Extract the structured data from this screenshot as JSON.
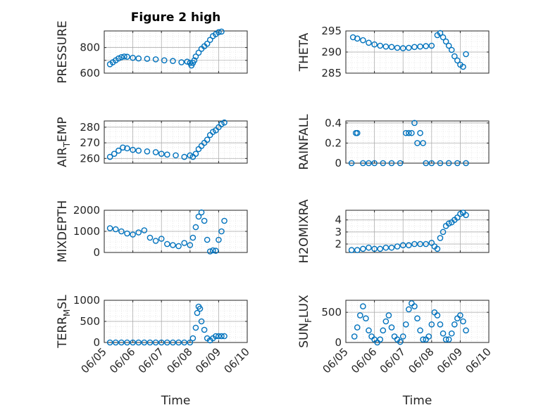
{
  "figure": {
    "title": "Figure 2 high"
  },
  "colors": {
    "marker": "#0072BD",
    "axis": "#262626",
    "grid": "#a6a6a6"
  },
  "chart_data": [
    {
      "type": "scatter",
      "title": "Figure 2 high",
      "xlabel": "",
      "ylabel": "PRESSURE",
      "ylabel_sub": "",
      "ylabel_tail": "",
      "xlim": [
        0,
        5
      ],
      "ylim": [
        600,
        930
      ],
      "yticks": [
        600,
        700,
        800
      ],
      "ytick_labels": [
        "600",
        "",
        "800"
      ],
      "xticks": [
        0,
        1,
        2,
        3,
        4,
        5
      ],
      "xtick_labels": [],
      "grid": true,
      "x": [
        0.2,
        0.3,
        0.4,
        0.5,
        0.6,
        0.7,
        0.8,
        1.0,
        1.2,
        1.5,
        1.8,
        2.1,
        2.4,
        2.7,
        2.9,
        3.0,
        3.05,
        3.1,
        3.15,
        3.2,
        3.3,
        3.4,
        3.5,
        3.6,
        3.7,
        3.8,
        3.9,
        4.0,
        4.1
      ],
      "y": [
        670,
        685,
        700,
        715,
        725,
        730,
        728,
        720,
        715,
        712,
        708,
        700,
        695,
        685,
        690,
        680,
        660,
        680,
        700,
        730,
        760,
        790,
        810,
        830,
        860,
        890,
        905,
        920,
        925
      ]
    },
    {
      "type": "scatter",
      "title": "",
      "xlabel": "",
      "ylabel": "THETA",
      "ylabel_sub": "",
      "ylabel_tail": "",
      "xlim": [
        0,
        5
      ],
      "ylim": [
        285,
        295
      ],
      "yticks": [
        285,
        290,
        295
      ],
      "ytick_labels": [
        "285",
        "290",
        "295"
      ],
      "xticks": [
        0,
        1,
        2,
        3,
        4,
        5
      ],
      "xtick_labels": [],
      "grid": true,
      "x": [
        0.25,
        0.4,
        0.6,
        0.8,
        1.0,
        1.2,
        1.4,
        1.6,
        1.8,
        2.0,
        2.2,
        2.4,
        2.6,
        2.8,
        3.0,
        3.2,
        3.3,
        3.4,
        3.5,
        3.6,
        3.7,
        3.8,
        3.9,
        4.0,
        4.1,
        4.2
      ],
      "y": [
        293.5,
        293.2,
        292.8,
        292.2,
        291.8,
        291.5,
        291.3,
        291.2,
        291.0,
        290.9,
        291.0,
        291.2,
        291.3,
        291.4,
        291.5,
        294.0,
        294.5,
        293.5,
        292.5,
        291.5,
        290.5,
        289.0,
        288.0,
        287.0,
        286.5,
        289.5
      ]
    },
    {
      "type": "scatter",
      "title": "",
      "xlabel": "",
      "ylabel": "AIR",
      "ylabel_sub": "T",
      "ylabel_tail": "EMP",
      "xlim": [
        0,
        5
      ],
      "ylim": [
        257,
        284
      ],
      "yticks": [
        260,
        270,
        280
      ],
      "ytick_labels": [
        "260",
        "270",
        "280"
      ],
      "xticks": [
        0,
        1,
        2,
        3,
        4,
        5
      ],
      "xtick_labels": [],
      "grid": true,
      "x": [
        0.2,
        0.35,
        0.5,
        0.65,
        0.8,
        1.0,
        1.2,
        1.5,
        1.8,
        2.0,
        2.2,
        2.5,
        2.8,
        3.0,
        3.1,
        3.2,
        3.3,
        3.4,
        3.5,
        3.6,
        3.7,
        3.8,
        3.9,
        4.0,
        4.1,
        4.2
      ],
      "y": [
        261,
        263,
        265,
        267,
        266.5,
        265.5,
        265,
        264.5,
        264,
        263,
        262.5,
        262,
        261,
        262,
        261,
        263,
        266,
        268,
        270,
        272,
        275,
        277,
        278,
        280,
        282,
        283
      ]
    },
    {
      "type": "scatter",
      "title": "",
      "xlabel": "",
      "ylabel": "RAINFALL",
      "ylabel_sub": "",
      "ylabel_tail": "",
      "xlim": [
        0,
        5
      ],
      "ylim": [
        0,
        0.42
      ],
      "yticks": [
        0,
        0.2,
        0.4
      ],
      "ytick_labels": [
        "0",
        "0.2",
        "0.4"
      ],
      "xticks": [
        0,
        1,
        2,
        3,
        4,
        5
      ],
      "xtick_labels": [],
      "grid": true,
      "x": [
        0.2,
        0.35,
        0.4,
        0.6,
        0.8,
        1.0,
        1.3,
        1.6,
        1.9,
        2.1,
        2.2,
        2.3,
        2.4,
        2.5,
        2.6,
        2.7,
        2.8,
        3.0,
        3.3,
        3.6,
        3.9,
        4.2
      ],
      "y": [
        0,
        0.3,
        0.3,
        0,
        0,
        0,
        0,
        0,
        0,
        0.3,
        0.3,
        0.3,
        0.4,
        0.2,
        0.3,
        0.2,
        0,
        0,
        0,
        0,
        0,
        0
      ]
    },
    {
      "type": "scatter",
      "title": "",
      "xlabel": "",
      "ylabel": "MIXDEPTH",
      "ylabel_sub": "",
      "ylabel_tail": "",
      "xlim": [
        0,
        5
      ],
      "ylim": [
        0,
        2000
      ],
      "yticks": [
        0,
        1000,
        2000
      ],
      "ytick_labels": [
        "0",
        "1000",
        "2000"
      ],
      "xticks": [
        0,
        1,
        2,
        3,
        4,
        5
      ],
      "xtick_labels": [],
      "grid": true,
      "x": [
        0.2,
        0.4,
        0.6,
        0.8,
        1.0,
        1.2,
        1.4,
        1.6,
        1.8,
        2.0,
        2.2,
        2.4,
        2.6,
        2.8,
        3.0,
        3.1,
        3.2,
        3.3,
        3.4,
        3.5,
        3.6,
        3.7,
        3.8,
        3.9,
        4.0,
        4.1,
        4.2
      ],
      "y": [
        1150,
        1100,
        1000,
        900,
        850,
        950,
        1050,
        700,
        550,
        650,
        400,
        350,
        300,
        450,
        350,
        700,
        1200,
        1700,
        1900,
        1500,
        600,
        50,
        100,
        80,
        600,
        1000,
        1500
      ]
    },
    {
      "type": "scatter",
      "title": "",
      "xlabel": "",
      "ylabel": "H2OMIXRA",
      "ylabel_sub": "",
      "ylabel_tail": "",
      "xlim": [
        0,
        5
      ],
      "ylim": [
        1.3,
        4.8
      ],
      "yticks": [
        2,
        3,
        4
      ],
      "ytick_labels": [
        "2",
        "3",
        "4"
      ],
      "xticks": [
        0,
        1,
        2,
        3,
        4,
        5
      ],
      "xtick_labels": [],
      "grid": true,
      "x": [
        0.2,
        0.4,
        0.6,
        0.8,
        1.0,
        1.2,
        1.4,
        1.6,
        1.8,
        2.0,
        2.2,
        2.4,
        2.6,
        2.8,
        3.0,
        3.1,
        3.2,
        3.3,
        3.4,
        3.5,
        3.6,
        3.7,
        3.8,
        3.9,
        4.0,
        4.1,
        4.2
      ],
      "y": [
        1.5,
        1.5,
        1.6,
        1.7,
        1.6,
        1.6,
        1.7,
        1.7,
        1.8,
        1.9,
        1.9,
        2.0,
        2.0,
        2.0,
        2.1,
        1.8,
        1.6,
        2.5,
        3.0,
        3.5,
        3.7,
        3.8,
        4.0,
        4.2,
        4.5,
        4.6,
        4.4
      ]
    },
    {
      "type": "scatter",
      "title": "",
      "xlabel": "Time",
      "ylabel": "TERR",
      "ylabel_sub": "M",
      "ylabel_tail": "SL",
      "xlim": [
        0,
        5
      ],
      "ylim": [
        0,
        1000
      ],
      "yticks": [
        0,
        500,
        1000
      ],
      "ytick_labels": [
        "0",
        "500",
        "1000"
      ],
      "xticks": [
        0,
        1,
        2,
        3,
        4,
        5
      ],
      "xtick_labels": [
        "06/05",
        "06/06",
        "06/07",
        "06/08",
        "06/09",
        "06/10"
      ],
      "grid": true,
      "x": [
        0.2,
        0.4,
        0.6,
        0.8,
        1.0,
        1.2,
        1.4,
        1.6,
        1.8,
        2.0,
        2.2,
        2.4,
        2.6,
        2.8,
        3.0,
        3.1,
        3.2,
        3.25,
        3.3,
        3.35,
        3.4,
        3.5,
        3.6,
        3.7,
        3.8,
        3.9,
        4.0,
        4.1,
        4.2
      ],
      "y": [
        0,
        0,
        0,
        0,
        0,
        0,
        0,
        0,
        0,
        0,
        0,
        0,
        0,
        0,
        0,
        100,
        350,
        700,
        850,
        800,
        500,
        300,
        100,
        50,
        100,
        150,
        150,
        150,
        150
      ]
    },
    {
      "type": "scatter",
      "title": "",
      "xlabel": "Time",
      "ylabel": "SUN",
      "ylabel_sub": "F",
      "ylabel_tail": "LUX",
      "xlim": [
        0,
        5
      ],
      "ylim": [
        0,
        700
      ],
      "yticks": [
        0,
        500
      ],
      "ytick_labels": [
        "0",
        "500"
      ],
      "xticks": [
        0,
        1,
        2,
        3,
        4,
        5
      ],
      "xtick_labels": [
        "06/05",
        "06/06",
        "06/07",
        "06/08",
        "06/09",
        "06/10"
      ],
      "grid": true,
      "x": [
        0.3,
        0.4,
        0.5,
        0.6,
        0.7,
        0.8,
        0.9,
        1.0,
        1.1,
        1.2,
        1.3,
        1.4,
        1.5,
        1.6,
        1.7,
        1.8,
        1.9,
        2.0,
        2.1,
        2.2,
        2.3,
        2.4,
        2.5,
        2.6,
        2.7,
        2.8,
        2.9,
        3.0,
        3.1,
        3.2,
        3.3,
        3.4,
        3.5,
        3.6,
        3.7,
        3.8,
        3.9,
        4.0,
        4.1,
        4.2
      ],
      "y": [
        100,
        250,
        450,
        600,
        400,
        200,
        100,
        50,
        0,
        50,
        200,
        350,
        450,
        250,
        100,
        50,
        10,
        100,
        300,
        550,
        650,
        600,
        400,
        200,
        50,
        50,
        100,
        300,
        500,
        450,
        300,
        150,
        50,
        50,
        150,
        300,
        400,
        450,
        350,
        200
      ]
    }
  ]
}
